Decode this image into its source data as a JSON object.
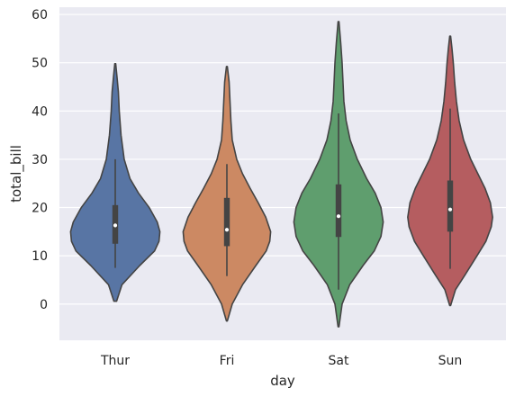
{
  "chart_data": {
    "type": "violin",
    "title": "",
    "xlabel": "day",
    "ylabel": "total_bill",
    "categories": [
      "Thur",
      "Fri",
      "Sat",
      "Sun"
    ],
    "ylim": [
      -7.5,
      61.5
    ],
    "yticks": [
      0,
      10,
      20,
      30,
      40,
      50,
      60
    ],
    "grid": true,
    "series": [
      {
        "category": "Thur",
        "color": "#5875a4",
        "min": 0.6,
        "max": 49.8,
        "whisker_low": 7.5,
        "whisker_high": 30.0,
        "q1": 12.5,
        "median": 16.3,
        "q3": 20.5,
        "profile": [
          [
            0.6,
            0.03
          ],
          [
            4,
            0.15
          ],
          [
            8,
            0.55
          ],
          [
            11,
            0.88
          ],
          [
            13,
            0.98
          ],
          [
            15,
            1.0
          ],
          [
            17,
            0.94
          ],
          [
            20,
            0.76
          ],
          [
            23,
            0.52
          ],
          [
            26,
            0.33
          ],
          [
            30,
            0.2
          ],
          [
            35,
            0.13
          ],
          [
            40,
            0.09
          ],
          [
            44,
            0.07
          ],
          [
            47,
            0.04
          ],
          [
            49.8,
            0.01
          ]
        ]
      },
      {
        "category": "Fri",
        "color": "#cc8963",
        "min": -3.5,
        "max": 49.2,
        "whisker_low": 5.8,
        "whisker_high": 29.0,
        "q1": 12.0,
        "median": 15.4,
        "q3": 22.0,
        "profile": [
          [
            -3.5,
            0.01
          ],
          [
            0,
            0.12
          ],
          [
            4,
            0.35
          ],
          [
            8,
            0.65
          ],
          [
            11,
            0.88
          ],
          [
            13,
            0.96
          ],
          [
            15,
            0.98
          ],
          [
            18,
            0.87
          ],
          [
            21,
            0.7
          ],
          [
            24,
            0.52
          ],
          [
            27,
            0.35
          ],
          [
            30,
            0.22
          ],
          [
            34,
            0.12
          ],
          [
            38,
            0.09
          ],
          [
            42,
            0.07
          ],
          [
            46,
            0.05
          ],
          [
            49.2,
            0.01
          ]
        ]
      },
      {
        "category": "Sat",
        "color": "#5f9e6e",
        "min": -4.7,
        "max": 58.5,
        "whisker_low": 3.0,
        "whisker_high": 39.5,
        "q1": 13.9,
        "median": 18.2,
        "q3": 24.8,
        "profile": [
          [
            -4.7,
            0.01
          ],
          [
            0,
            0.08
          ],
          [
            4,
            0.25
          ],
          [
            8,
            0.55
          ],
          [
            11,
            0.8
          ],
          [
            14,
            0.95
          ],
          [
            17,
            1.0
          ],
          [
            20,
            0.95
          ],
          [
            23,
            0.82
          ],
          [
            26,
            0.63
          ],
          [
            30,
            0.42
          ],
          [
            34,
            0.26
          ],
          [
            38,
            0.17
          ],
          [
            42,
            0.12
          ],
          [
            46,
            0.1
          ],
          [
            50,
            0.08
          ],
          [
            54,
            0.05
          ],
          [
            58.5,
            0.01
          ]
        ]
      },
      {
        "category": "Sun",
        "color": "#b55d60",
        "min": -0.3,
        "max": 55.5,
        "whisker_low": 7.3,
        "whisker_high": 40.5,
        "q1": 15.0,
        "median": 19.6,
        "q3": 25.6,
        "profile": [
          [
            -0.3,
            0.01
          ],
          [
            3,
            0.12
          ],
          [
            6,
            0.33
          ],
          [
            10,
            0.6
          ],
          [
            13,
            0.8
          ],
          [
            16,
            0.92
          ],
          [
            18,
            0.95
          ],
          [
            21,
            0.9
          ],
          [
            24,
            0.78
          ],
          [
            27,
            0.62
          ],
          [
            30,
            0.46
          ],
          [
            34,
            0.3
          ],
          [
            38,
            0.2
          ],
          [
            42,
            0.14
          ],
          [
            46,
            0.1
          ],
          [
            50,
            0.07
          ],
          [
            53,
            0.04
          ],
          [
            55.5,
            0.01
          ]
        ]
      }
    ]
  }
}
